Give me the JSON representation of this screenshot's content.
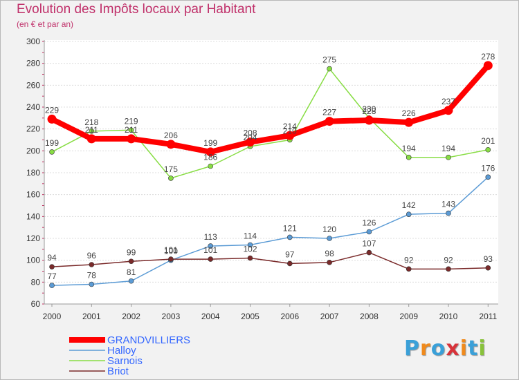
{
  "chart_data": {
    "type": "line",
    "title": "Evolution des Impôts locaux par Habitant",
    "subtitle": "(en € et par an)",
    "xlabel": "",
    "ylabel": "",
    "categories": [
      "2000",
      "2001",
      "2002",
      "2003",
      "2004",
      "2005",
      "2006",
      "2007",
      "2008",
      "2009",
      "2010",
      "2011"
    ],
    "ylim": [
      60,
      300
    ],
    "yticks": [
      60,
      80,
      100,
      120,
      140,
      160,
      180,
      200,
      220,
      240,
      260,
      280,
      300
    ],
    "grid": "horizontal",
    "legend_position": "bottom-left",
    "series": [
      {
        "name": "GRANDVILLIERS",
        "color": "#ff0000",
        "values": [
          229,
          211,
          211,
          206,
          199,
          208,
          214,
          227,
          228,
          226,
          237,
          278
        ]
      },
      {
        "name": "Halloy",
        "color": "#5b9bd5",
        "values": [
          77,
          78,
          81,
          100,
          113,
          114,
          121,
          120,
          126,
          142,
          143,
          176
        ]
      },
      {
        "name": "Sarnois",
        "color": "#88dd44",
        "values": [
          199,
          218,
          219,
          175,
          186,
          204,
          210,
          275,
          230,
          194,
          194,
          201
        ]
      },
      {
        "name": "Briot",
        "color": "#7a2a2a",
        "values": [
          94,
          96,
          99,
          101,
          101,
          102,
          97,
          98,
          107,
          92,
          92,
          93
        ]
      }
    ]
  },
  "logo": {
    "text": "Proxiti",
    "colors": [
      "#3aa0d8",
      "#f08a1c",
      "#3aa0d8",
      "#d8333a",
      "#f08a1c",
      "#3aa0d8",
      "#88c23a"
    ]
  }
}
